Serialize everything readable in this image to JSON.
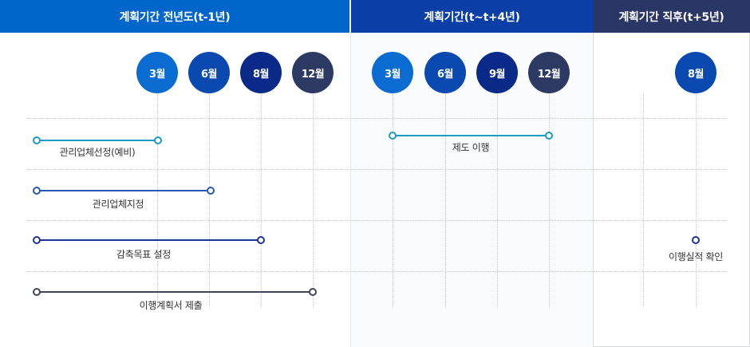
{
  "colors": {
    "header_1": "#0066cc",
    "header_2": "#0a3fa8",
    "header_3": "#2a3766",
    "month_light": "#0a6bd1",
    "month_mid": "#0a49b0",
    "month_dark": "#0a2a8a",
    "month_navy": "#2d3a63",
    "track_teal": "#1a9ac9",
    "track_blue": "#2758b5",
    "track_navy": "#1c3397",
    "track_gray": "#3e4557"
  },
  "panels": [
    {
      "header": "계획기간 전년도(t-1년)",
      "months": [
        "3월",
        "6월",
        "8월",
        "12월"
      ],
      "tasks": [
        {
          "label": "관리업체선정(예비)"
        },
        {
          "label": "관리업체지정"
        },
        {
          "label": "감축목표 설정"
        },
        {
          "label": "이행계획서 제출"
        }
      ]
    },
    {
      "header": "계획기간(t~t+4년)",
      "months": [
        "3월",
        "6월",
        "9월",
        "12월"
      ],
      "tasks": [
        {
          "label": "제도 이행"
        }
      ]
    },
    {
      "header": "계획기간 직후(t+5년)",
      "months": [
        "8월"
      ],
      "tasks": [
        {
          "label": "이행실적 확인"
        }
      ]
    }
  ]
}
